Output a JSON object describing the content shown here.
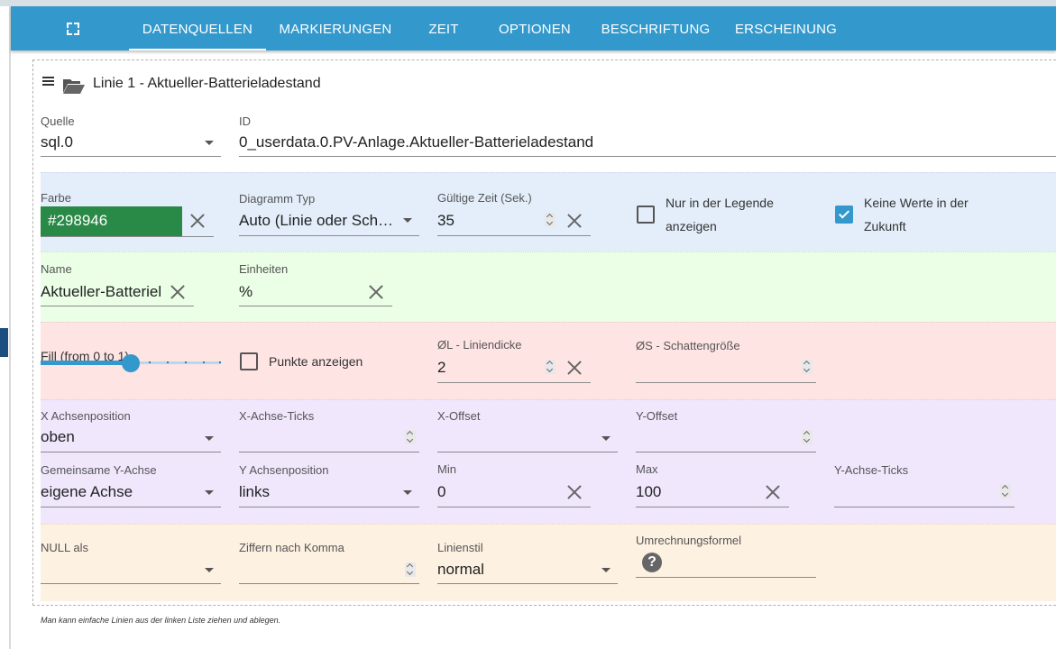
{
  "tabs": [
    {
      "label": "DATENQUELLEN"
    },
    {
      "label": "MARKIERUNGEN"
    },
    {
      "label": "ZEIT"
    },
    {
      "label": "OPTIONEN"
    },
    {
      "label": "BESCHRIFTUNG"
    },
    {
      "label": "ERSCHEINUNG"
    }
  ],
  "active_tab": "DATENQUELLEN",
  "line": {
    "title": "Linie 1 - Aktueller-Batterieladestand",
    "quelle": {
      "label": "Quelle",
      "value": "sql.0"
    },
    "id": {
      "label": "ID",
      "value": "0_userdata.0.PV-Anlage.Aktueller-Batterieladestand"
    },
    "farbe": {
      "label": "Farbe",
      "value": "#298946"
    },
    "diagramm_typ": {
      "label": "Diagramm Typ",
      "value": "Auto (Linie oder Sch…"
    },
    "gueltige_zeit": {
      "label": "Gültige Zeit (Sek.)",
      "value": "35"
    },
    "nur_legende": {
      "label_line1": "Nur in der Legende",
      "label_line2": "anzeigen",
      "checked": false
    },
    "keine_werte": {
      "label_line1": "Keine Werte in der",
      "label_line2": "Zukunft",
      "checked": true
    },
    "name": {
      "label": "Name",
      "value": "Aktueller-Batteriel"
    },
    "einheiten": {
      "label": "Einheiten",
      "value": "%"
    },
    "fill": {
      "label": "Fill (from 0 to 1)",
      "value": 0.5
    },
    "punkte": {
      "label": "Punkte anzeigen",
      "checked": false
    },
    "liniendicke": {
      "label": "ØL - Liniendicke",
      "value": "2"
    },
    "schatten": {
      "label": "ØS - Schattengröße",
      "value": ""
    },
    "x_achsenposition": {
      "label": "X Achsenposition",
      "value": "oben"
    },
    "x_achse_ticks": {
      "label": "X-Achse-Ticks",
      "value": ""
    },
    "x_offset": {
      "label": "X-Offset",
      "value": ""
    },
    "y_offset": {
      "label": "Y-Offset",
      "value": ""
    },
    "gemeinsame_y": {
      "label": "Gemeinsame Y-Achse",
      "value": "eigene Achse"
    },
    "y_achsenposition": {
      "label": "Y Achsenposition",
      "value": "links"
    },
    "min": {
      "label": "Min",
      "value": "0"
    },
    "max": {
      "label": "Max",
      "value": "100"
    },
    "y_achse_ticks": {
      "label": "Y-Achse-Ticks",
      "value": ""
    },
    "null_als": {
      "label": "NULL als",
      "value": ""
    },
    "ziffern": {
      "label": "Ziffern nach Komma",
      "value": ""
    },
    "linienstil": {
      "label": "Linienstil",
      "value": "normal"
    },
    "umrechnung": {
      "label": "Umrechnungsformel",
      "value": ""
    }
  },
  "footnote": "Man kann einfache Linien aus der linken Liste ziehen und ablegen.",
  "colors": {
    "appbar": "#3399cc",
    "accent": "#3399cc",
    "line_color": "#298946"
  },
  "icons": [
    "fullscreen-icon",
    "menu-icon",
    "folder-open-icon",
    "close-icon",
    "spinner-icon",
    "help-icon",
    "chevron-down-icon"
  ]
}
